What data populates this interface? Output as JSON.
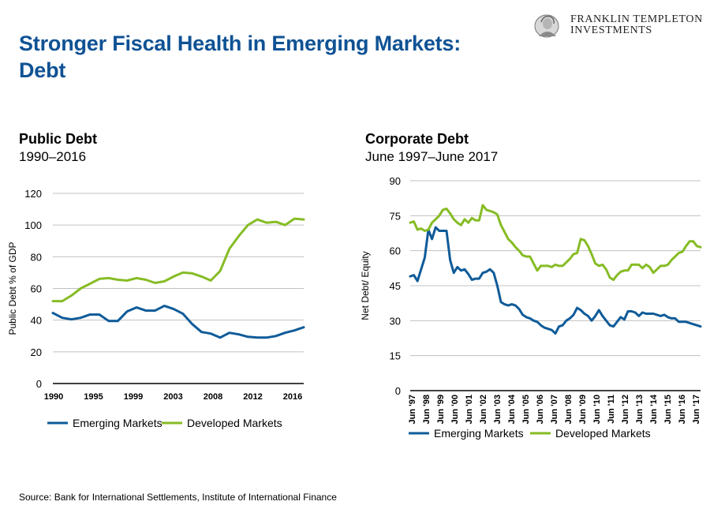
{
  "header": {
    "title_line1": "Stronger Fiscal Health in Emerging Markets:",
    "title_line2": "Debt",
    "logo_line1": "FRANKLIN TEMPLETON",
    "logo_line2": "INVESTMENTS",
    "logo_icon": "benjamin-franklin-portrait-icon"
  },
  "colors": {
    "title": "#0f5294",
    "emerging": "#0f5b99",
    "developed": "#86bc25",
    "grid": "#c0c0c0",
    "axis": "#000000"
  },
  "footer": {
    "source": "Source: Bank for International Settlements, Institute of International Finance"
  },
  "chart_data": [
    {
      "type": "line",
      "title": "Public Debt",
      "subtitle": "1990–2016",
      "xlabel": "",
      "ylabel": "Public Debt % of GDP",
      "ylim": [
        0,
        120
      ],
      "yticks": [
        0,
        20,
        40,
        60,
        80,
        100,
        120
      ],
      "xtick_labels": [
        "1990",
        "1995",
        "1999",
        "2003",
        "2008",
        "2012",
        "2016"
      ],
      "grid": true,
      "legend": "bottom",
      "x": [
        1990,
        1991,
        1992,
        1993,
        1994,
        1995,
        1996,
        1997,
        1998,
        1999,
        2000,
        2001,
        2002,
        2003,
        2004,
        2005,
        2006,
        2007,
        2008,
        2009,
        2010,
        2011,
        2012,
        2013,
        2014,
        2015,
        2016,
        2017
      ],
      "series": [
        {
          "name": "Emerging Markets",
          "values": [
            44.5,
            41.5,
            40.5,
            41.5,
            43.5,
            43.5,
            39.5,
            39.5,
            45.5,
            48,
            46,
            46,
            49,
            47,
            44,
            37.5,
            32.5,
            31.5,
            29,
            32,
            31,
            29.5,
            29,
            29,
            30,
            32,
            33.5,
            35.5
          ]
        },
        {
          "name": "Developed Markets",
          "values": [
            52,
            52,
            55.5,
            60,
            63,
            66,
            66.5,
            65.5,
            65,
            66.5,
            65.5,
            63.5,
            64.5,
            67.5,
            70,
            69.5,
            67.5,
            65,
            71,
            85,
            93,
            100,
            103.5,
            101.5,
            102,
            100,
            104,
            103.5
          ]
        }
      ]
    },
    {
      "type": "line",
      "title": "Corporate Debt",
      "subtitle": "June 1997–June 2017",
      "xlabel": "",
      "ylabel": "Net Debt/ Equity",
      "ylim": [
        0,
        90
      ],
      "yticks": [
        0,
        15,
        30,
        45,
        60,
        75,
        90
      ],
      "xtick_labels": [
        "Jun '97",
        "Jun '98",
        "Jun '99",
        "Jun '00",
        "Jun '01",
        "Jun '02",
        "Jun '03",
        "Jun '04",
        "Jun '05",
        "Jun '06",
        "Jun '07",
        "Jun '08",
        "Jun '09",
        "Jun '10",
        "Jun '11",
        "Jun '12",
        "Jun '13",
        "Jun '14",
        "Jun '15",
        "Jun '16",
        "Jun '17"
      ],
      "grid": true,
      "legend": "bottom",
      "frequency": "quarterly",
      "series": [
        {
          "name": "Emerging Markets",
          "values": [
            49,
            49.5,
            47,
            52,
            57,
            69,
            65,
            70,
            68.5,
            68.5,
            68.5,
            56,
            50.5,
            53,
            51.5,
            52,
            50,
            47.5,
            48,
            48,
            50.5,
            51,
            52,
            50.5,
            45,
            38,
            37,
            36.5,
            37,
            36.5,
            35,
            32.5,
            31.5,
            31,
            30,
            29.5,
            28,
            27,
            26.5,
            26,
            24.5,
            27.5,
            28,
            30,
            31,
            32.5,
            35.5,
            34.5,
            33,
            32,
            30,
            32,
            34.5,
            32,
            30,
            28,
            27.5,
            29.5,
            31.5,
            30.5,
            34,
            34,
            33.5,
            32,
            33.5,
            33,
            33,
            33,
            32.5,
            32,
            32.5,
            31.5,
            31,
            31,
            29.5,
            29.5,
            29.5,
            29,
            28.5,
            28,
            27.5
          ]
        },
        {
          "name": "Developed Markets",
          "values": [
            72,
            72.5,
            69,
            69.5,
            68.5,
            69,
            72,
            73.5,
            75,
            77.5,
            78,
            76,
            73.5,
            72,
            71,
            73.5,
            72,
            74,
            73,
            73,
            79.5,
            77.5,
            77,
            76.5,
            75.5,
            71,
            68,
            65,
            63.5,
            61.5,
            60,
            58,
            57.5,
            57.5,
            54.5,
            51.5,
            53.5,
            53.5,
            53.5,
            53,
            54,
            53.5,
            53.5,
            55,
            56.5,
            58.5,
            59,
            65,
            64.5,
            62,
            58.5,
            54.5,
            53.5,
            54,
            52,
            48.5,
            47.5,
            49.5,
            51,
            51.5,
            51.5,
            54,
            54,
            54,
            52.5,
            54,
            53,
            50.5,
            52,
            53.5,
            53.5,
            54,
            56,
            57.5,
            59,
            59.5,
            62,
            64,
            64,
            62,
            61.5
          ]
        }
      ]
    }
  ]
}
